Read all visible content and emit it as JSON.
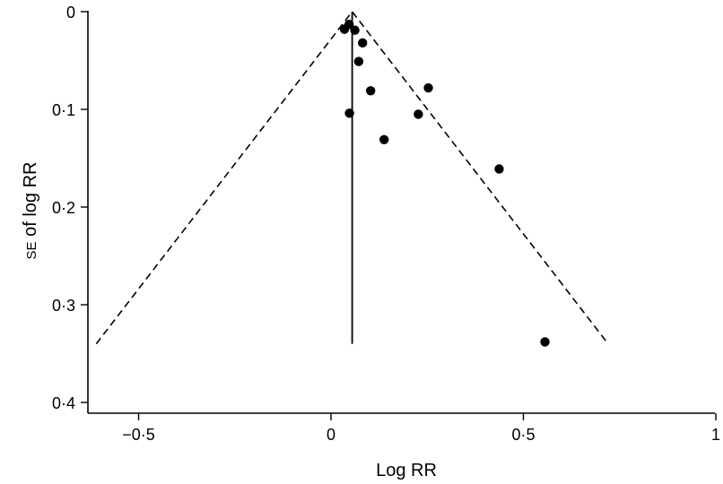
{
  "chart_data": {
    "type": "scatter",
    "xlabel": "Log RR",
    "ylabel_small_caps": "SE",
    "ylabel_rest": " of log RR",
    "xlim": [
      -0.63,
      1.0
    ],
    "ylim": [
      0.0,
      0.41
    ],
    "y_inverted": true,
    "x_ticks": [
      -0.5,
      0,
      0.5,
      1
    ],
    "x_tick_labels": [
      "−0·5",
      "0",
      "0·5",
      "1"
    ],
    "y_ticks": [
      0,
      0.1,
      0.2,
      0.3,
      0.4
    ],
    "y_tick_labels": [
      "0",
      "0·1",
      "0·2",
      "0·3",
      "0·4"
    ],
    "pooled_estimate": 0.055,
    "pooled_line_se_range": [
      0,
      0.34
    ],
    "funnel_limits": {
      "apex": [
        0.055,
        0.0
      ],
      "left_end": [
        -0.61,
        0.34
      ],
      "right_end": [
        0.72,
        0.34
      ]
    },
    "points": [
      {
        "x": 0.035,
        "y": 0.018
      },
      {
        "x": 0.047,
        "y": 0.013
      },
      {
        "x": 0.062,
        "y": 0.019
      },
      {
        "x": 0.082,
        "y": 0.032
      },
      {
        "x": 0.072,
        "y": 0.051
      },
      {
        "x": 0.103,
        "y": 0.081
      },
      {
        "x": 0.253,
        "y": 0.078
      },
      {
        "x": 0.048,
        "y": 0.104
      },
      {
        "x": 0.227,
        "y": 0.105
      },
      {
        "x": 0.138,
        "y": 0.131
      },
      {
        "x": 0.437,
        "y": 0.161
      },
      {
        "x": 0.556,
        "y": 0.338
      }
    ]
  }
}
